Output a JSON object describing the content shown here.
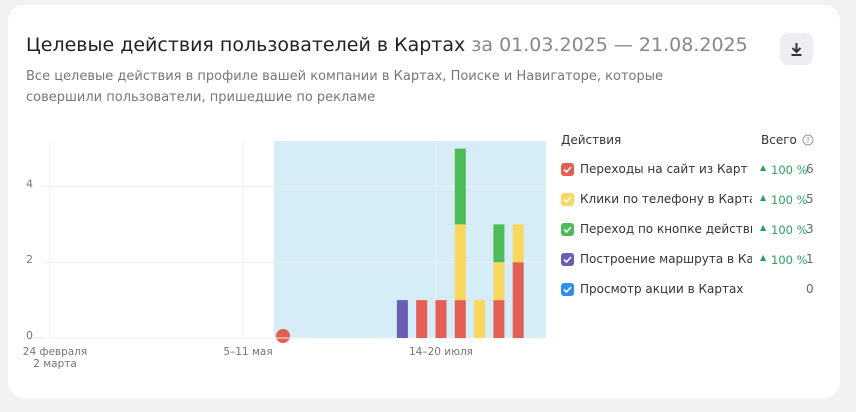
{
  "header": {
    "title": "Целевые действия пользователей в Картах",
    "period": "за 01.03.2025 — 21.08.2025",
    "subtitle": "Все целевые действия в профиле вашей компании в Картах, Поиске и Навигаторе, которые совершили пользователи, пришедшие по рекламе"
  },
  "legend": {
    "actions_header": "Действия",
    "total_header": "Всего"
  },
  "chart_data": {
    "type": "stacked-bar",
    "categories": [
      "24 февраля\n2 марта",
      null,
      null,
      null,
      null,
      null,
      null,
      null,
      null,
      null,
      "5–11 мая",
      null,
      null,
      null,
      null,
      null,
      null,
      null,
      null,
      null,
      "14–20 июля",
      null,
      null,
      null,
      null,
      null
    ],
    "ylim": [
      0,
      5.2
    ],
    "yticks": [
      0,
      2,
      4
    ],
    "series": [
      {
        "name": "Переходы на сайт из Карт",
        "color": "#e35f56",
        "change": "100 %",
        "total": 6,
        "values": [
          0,
          0,
          0,
          0,
          0,
          0,
          0,
          0,
          0,
          0,
          0,
          0,
          0,
          0,
          0,
          0,
          0,
          0,
          0,
          1,
          1,
          1,
          0,
          1,
          2,
          0
        ]
      },
      {
        "name": "Клики по телефону в Картах",
        "color": "#f8d85e",
        "change": "100 %",
        "total": 5,
        "values": [
          0,
          0,
          0,
          0,
          0,
          0,
          0,
          0,
          0,
          0,
          0,
          0,
          0,
          0,
          0,
          0,
          0,
          0,
          0,
          0,
          0,
          2,
          1,
          1,
          1,
          0
        ]
      },
      {
        "name": "Переход по кнопке действия из",
        "color": "#4cbb58",
        "change": "100 %",
        "total": 3,
        "values": [
          0,
          0,
          0,
          0,
          0,
          0,
          0,
          0,
          0,
          0,
          0,
          0,
          0,
          0,
          0,
          0,
          0,
          0,
          0,
          0,
          0,
          2,
          0,
          1,
          0,
          0
        ]
      },
      {
        "name": "Построение маршрута в Картах",
        "color": "#6a5fb3",
        "change": "100 %",
        "total": 1,
        "values": [
          0,
          0,
          0,
          0,
          0,
          0,
          0,
          0,
          0,
          0,
          0,
          0,
          0,
          0,
          0,
          0,
          0,
          0,
          1,
          0,
          0,
          0,
          0,
          0,
          0,
          0
        ]
      },
      {
        "name": "Просмотр акции в Картах",
        "color": "#2f8ff0",
        "total": 0,
        "values": [
          0,
          0,
          0,
          0,
          0,
          0,
          0,
          0,
          0,
          0,
          0,
          0,
          0,
          0,
          0,
          0,
          0,
          0,
          0,
          0,
          0,
          0,
          0,
          0,
          0,
          0
        ]
      }
    ]
  }
}
